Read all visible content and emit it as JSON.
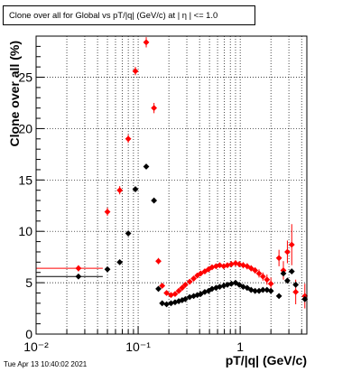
{
  "chart_data": {
    "type": "scatter",
    "title": "Clone  over all for Global vs pT/|q| (GeV/c) at |  η | <= 1.0",
    "xlabel": "pT/|q| (GeV/c)",
    "ylabel": "Clone  over all (%)",
    "xscale": "log",
    "xlim": [
      0.01,
      4.5
    ],
    "ylim": [
      0,
      29
    ],
    "xticks": [
      0.01,
      0.1,
      1
    ],
    "xtick_labels": [
      "10⁻²",
      "10⁻¹",
      "1"
    ],
    "yticks": [
      0,
      5,
      10,
      15,
      20,
      25
    ],
    "grid": true,
    "legend": "none",
    "series": [
      {
        "color": "#ff0000",
        "x": [
          0.026,
          0.05,
          0.066,
          0.08,
          0.094,
          0.12,
          0.143,
          0.158,
          0.172,
          0.19,
          0.21,
          0.23,
          0.25,
          0.27,
          0.29,
          0.32,
          0.35,
          0.38,
          0.41,
          0.45,
          0.49,
          0.53,
          0.58,
          0.63,
          0.69,
          0.75,
          0.82,
          0.9,
          0.98,
          1.07,
          1.17,
          1.28,
          1.4,
          1.53,
          1.67,
          1.83,
          2.0,
          2.4,
          2.65,
          2.9,
          3.2,
          3.5,
          4.3
        ],
        "y": [
          6.4,
          11.9,
          14.0,
          19.0,
          25.6,
          28.4,
          22.0,
          7.1,
          4.7,
          4.0,
          3.8,
          3.9,
          4.2,
          4.5,
          4.8,
          5.1,
          5.4,
          5.7,
          5.9,
          6.1,
          6.3,
          6.5,
          6.6,
          6.7,
          6.6,
          6.7,
          6.8,
          6.9,
          6.8,
          6.7,
          6.6,
          6.4,
          6.2,
          5.9,
          5.6,
          5.3,
          4.9,
          7.4,
          6.2,
          8.0,
          8.7,
          4.1,
          3.7
        ],
        "yerr": [
          0.3,
          0.4,
          0.4,
          0.4,
          0.4,
          0.5,
          0.5,
          0.3,
          0.2,
          0.2,
          0.2,
          0.2,
          0.2,
          0.2,
          0.2,
          0.2,
          0.2,
          0.2,
          0.2,
          0.2,
          0.2,
          0.2,
          0.2,
          0.2,
          0.2,
          0.2,
          0.3,
          0.3,
          0.3,
          0.3,
          0.3,
          0.3,
          0.3,
          0.4,
          0.4,
          0.5,
          0.6,
          0.8,
          0.9,
          1.1,
          2.0,
          1.2,
          1.2
        ]
      },
      {
        "color": "#000000",
        "x": [
          0.026,
          0.05,
          0.066,
          0.08,
          0.094,
          0.12,
          0.143,
          0.158,
          0.172,
          0.19,
          0.21,
          0.23,
          0.25,
          0.27,
          0.29,
          0.32,
          0.35,
          0.38,
          0.41,
          0.45,
          0.49,
          0.53,
          0.58,
          0.63,
          0.69,
          0.75,
          0.82,
          0.9,
          0.98,
          1.07,
          1.17,
          1.28,
          1.4,
          1.53,
          1.67,
          1.83,
          2.0,
          2.4,
          2.65,
          2.9,
          3.2,
          3.5,
          4.3
        ],
        "y": [
          5.6,
          6.3,
          7.0,
          9.8,
          14.1,
          16.3,
          13.0,
          4.4,
          3.0,
          2.9,
          3.0,
          3.1,
          3.2,
          3.3,
          3.4,
          3.6,
          3.7,
          3.8,
          3.9,
          4.1,
          4.2,
          4.4,
          4.5,
          4.6,
          4.7,
          4.8,
          4.9,
          5.0,
          4.8,
          4.6,
          4.5,
          4.3,
          4.2,
          4.2,
          4.3,
          4.3,
          4.2,
          3.7,
          5.9,
          5.2,
          6.1,
          4.8,
          3.4
        ]
      }
    ]
  },
  "timestamp": "Tue Apr 13 10:40:02 2021"
}
